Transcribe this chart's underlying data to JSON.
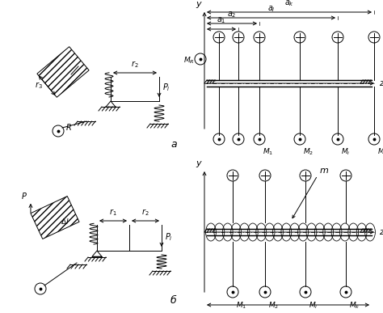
{
  "fig_width": 4.74,
  "fig_height": 3.87,
  "dpi": 100,
  "bg_color": "#ffffff",
  "lc": "#000000"
}
